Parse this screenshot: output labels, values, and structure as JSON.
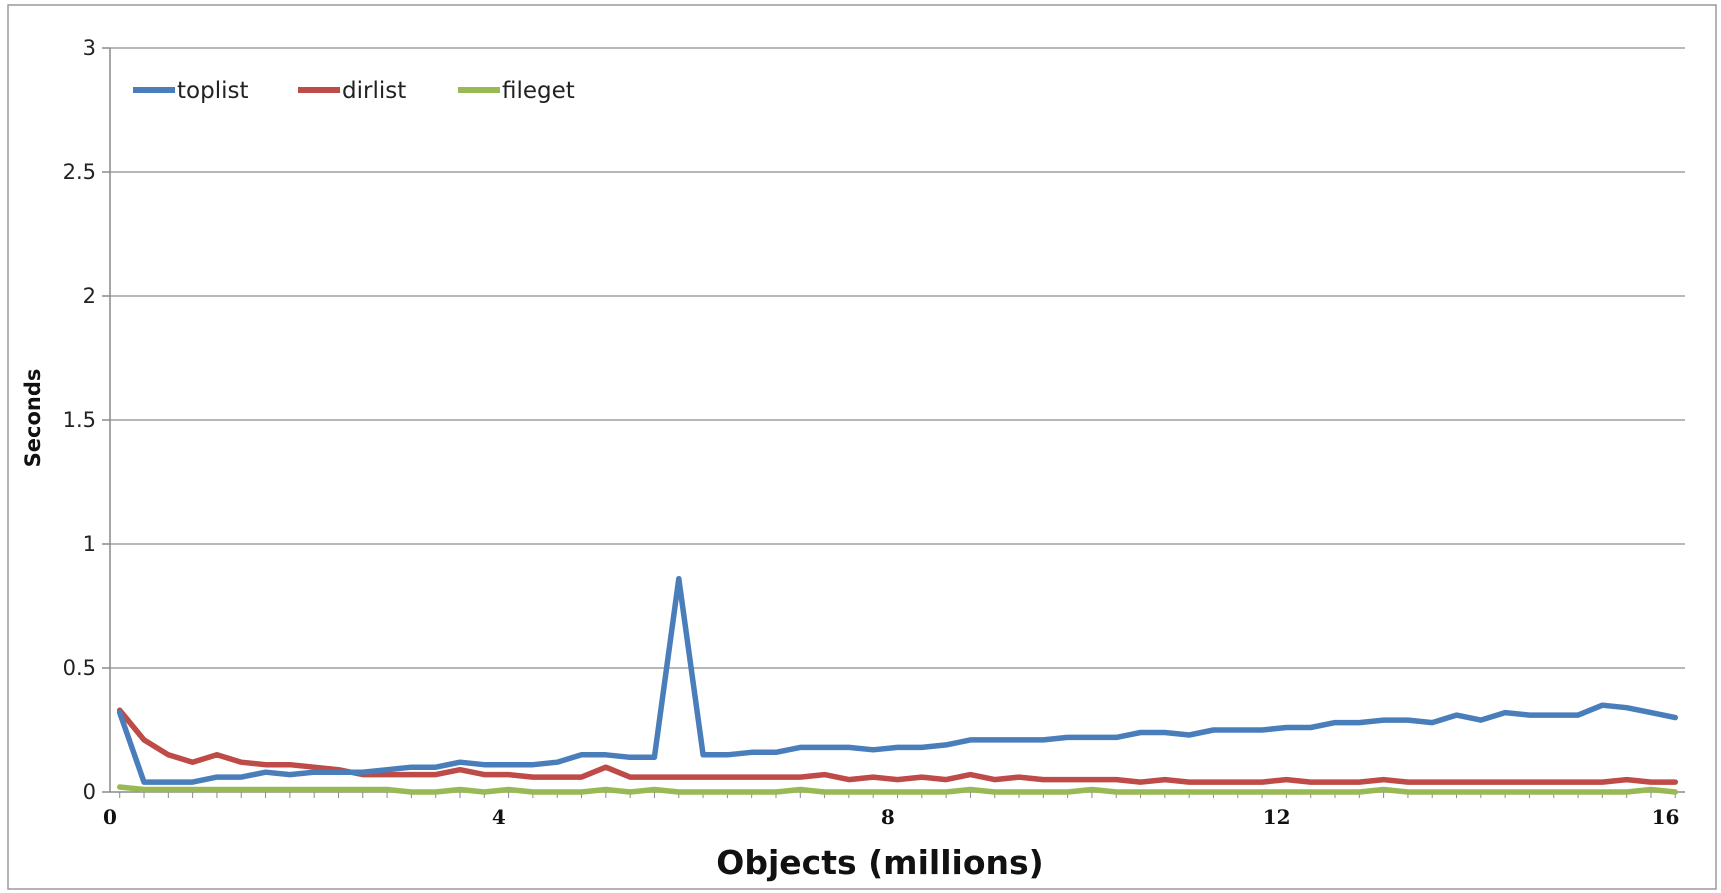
{
  "chart_data": {
    "type": "line",
    "xlabel": "Objects (millions)",
    "ylabel": "Seconds",
    "xlim": [
      0,
      16.2
    ],
    "ylim": [
      0,
      3
    ],
    "x_ticks": [
      "0",
      "4",
      "8",
      "12",
      "16"
    ],
    "y_ticks": [
      "0",
      "0.5",
      "1",
      "1.5",
      "2",
      "2.5",
      "3"
    ],
    "grid": "horizontal",
    "legend_position": "top-left",
    "x": [
      0.1,
      0.35,
      0.6,
      0.85,
      1.1,
      1.35,
      1.6,
      1.85,
      2.1,
      2.35,
      2.6,
      2.85,
      3.1,
      3.35,
      3.6,
      3.85,
      4.1,
      4.35,
      4.6,
      4.85,
      5.1,
      5.35,
      5.6,
      5.85,
      6.1,
      6.35,
      6.6,
      6.85,
      7.1,
      7.35,
      7.6,
      7.85,
      8.1,
      8.35,
      8.6,
      8.85,
      9.1,
      9.35,
      9.6,
      9.85,
      10.1,
      10.35,
      10.6,
      10.85,
      11.1,
      11.35,
      11.6,
      11.85,
      12.1,
      12.35,
      12.6,
      12.85,
      13.1,
      13.35,
      13.6,
      13.85,
      14.1,
      14.35,
      14.6,
      14.85,
      15.1,
      15.35,
      15.6,
      15.85,
      16.1
    ],
    "series": [
      {
        "name": "toplist",
        "color": "#4a7ebb",
        "values": [
          0.32,
          0.04,
          0.04,
          0.04,
          0.06,
          0.06,
          0.08,
          0.07,
          0.08,
          0.08,
          0.08,
          0.09,
          0.1,
          0.1,
          0.12,
          0.11,
          0.11,
          0.11,
          0.12,
          0.15,
          0.15,
          0.14,
          0.14,
          0.86,
          0.15,
          0.15,
          0.16,
          0.16,
          0.18,
          0.18,
          0.18,
          0.17,
          0.18,
          0.18,
          0.19,
          0.21,
          0.21,
          0.21,
          0.21,
          0.22,
          0.22,
          0.22,
          0.24,
          0.24,
          0.23,
          0.25,
          0.25,
          0.25,
          0.26,
          0.26,
          0.28,
          0.28,
          0.29,
          0.29,
          0.28,
          0.31,
          0.29,
          0.32,
          0.31,
          0.31,
          0.31,
          0.35,
          0.34,
          0.32,
          0.3
        ]
      },
      {
        "name": "dirlist",
        "color": "#be4b48",
        "values": [
          0.33,
          0.21,
          0.15,
          0.12,
          0.15,
          0.12,
          0.11,
          0.11,
          0.1,
          0.09,
          0.07,
          0.07,
          0.07,
          0.07,
          0.09,
          0.07,
          0.07,
          0.06,
          0.06,
          0.06,
          0.1,
          0.06,
          0.06,
          0.06,
          0.06,
          0.06,
          0.06,
          0.06,
          0.06,
          0.07,
          0.05,
          0.06,
          0.05,
          0.06,
          0.05,
          0.07,
          0.05,
          0.06,
          0.05,
          0.05,
          0.05,
          0.05,
          0.04,
          0.05,
          0.04,
          0.04,
          0.04,
          0.04,
          0.05,
          0.04,
          0.04,
          0.04,
          0.05,
          0.04,
          0.04,
          0.04,
          0.04,
          0.04,
          0.04,
          0.04,
          0.04,
          0.04,
          0.05,
          0.04,
          0.04
        ]
      },
      {
        "name": "fileget",
        "color": "#98b954",
        "values": [
          0.02,
          0.01,
          0.01,
          0.01,
          0.01,
          0.01,
          0.01,
          0.01,
          0.01,
          0.01,
          0.01,
          0.01,
          0.0,
          0.0,
          0.01,
          0.0,
          0.01,
          0.0,
          0.0,
          0.0,
          0.01,
          0.0,
          0.01,
          0.0,
          0.0,
          0.0,
          0.0,
          0.0,
          0.01,
          0.0,
          0.0,
          0.0,
          0.0,
          0.0,
          0.0,
          0.01,
          0.0,
          0.0,
          0.0,
          0.0,
          0.01,
          0.0,
          0.0,
          0.0,
          0.0,
          0.0,
          0.0,
          0.0,
          0.0,
          0.0,
          0.0,
          0.0,
          0.01,
          0.0,
          0.0,
          0.0,
          0.0,
          0.0,
          0.0,
          0.0,
          0.0,
          0.0,
          0.0,
          0.01,
          0.0
        ]
      }
    ]
  }
}
